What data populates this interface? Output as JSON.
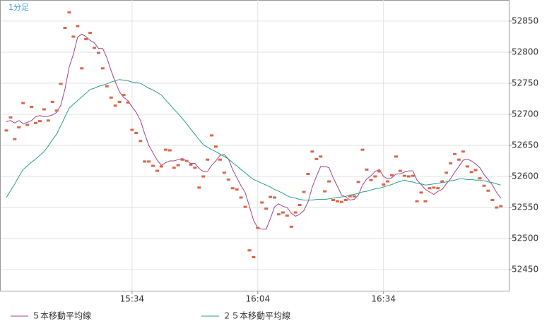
{
  "chart_data": {
    "type": "line",
    "title": "1分足",
    "categories": [
      null,
      null,
      null,
      null,
      null,
      null,
      null,
      null,
      null,
      null,
      null,
      null,
      null,
      null,
      null,
      null,
      null,
      null,
      null,
      null,
      null,
      null,
      null,
      null,
      null,
      null,
      null,
      null,
      null,
      null,
      "15:34",
      null,
      null,
      null,
      null,
      null,
      null,
      null,
      null,
      null,
      null,
      null,
      null,
      null,
      null,
      null,
      null,
      null,
      null,
      null,
      null,
      null,
      null,
      null,
      null,
      null,
      null,
      null,
      null,
      null,
      "16:04",
      null,
      null,
      null,
      null,
      null,
      null,
      null,
      null,
      null,
      null,
      null,
      null,
      null,
      null,
      null,
      null,
      null,
      null,
      null,
      null,
      null,
      null,
      null,
      null,
      null,
      null,
      null,
      null,
      null,
      "16:34",
      null,
      null,
      null,
      null,
      null,
      null,
      null,
      null,
      null,
      null,
      null,
      null,
      null,
      null,
      null,
      null,
      null,
      null,
      null,
      null,
      null,
      null,
      null,
      null,
      null,
      null,
      null,
      null
    ],
    "points": {
      "color": "#d9654a",
      "values": [
        52674,
        52695,
        52660,
        52679,
        52718,
        52683,
        52712,
        52686,
        52689,
        52708,
        52690,
        52720,
        52706,
        52749,
        52839,
        52864,
        52825,
        52842,
        52774,
        52821,
        52831,
        52807,
        52799,
        52774,
        52745,
        52727,
        52714,
        52720,
        52731,
        52719,
        52675,
        52670,
        52657,
        52624,
        52624,
        52617,
        52609,
        52616,
        52643,
        52642,
        52614,
        52618,
        52627,
        52625,
        52619,
        52614,
        52582,
        52600,
        52627,
        52666,
        52648,
        52627,
        52606,
        52595,
        52581,
        52579,
        52566,
        52551,
        52481,
        52470,
        52517,
        52558,
        52548,
        52567,
        52566,
        52539,
        52542,
        52537,
        52519,
        52542,
        52554,
        52575,
        52604,
        52640,
        52628,
        52632,
        52576,
        52592,
        52562,
        52560,
        52559,
        52562,
        52568,
        52568,
        52591,
        52643,
        52611,
        52594,
        52600,
        52608,
        52587,
        52592,
        52602,
        52632,
        52609,
        52601,
        52600,
        52601,
        52560,
        52574,
        52560,
        52581,
        52582,
        52581,
        52592,
        52606,
        52621,
        52636,
        52627,
        52640,
        52616,
        52607,
        52610,
        52597,
        52585,
        52577,
        52562,
        52550,
        52552
      ]
    },
    "series": [
      {
        "name": "５本移動平均線",
        "color": "#a0448c",
        "values": [
          52688,
          52690,
          52686,
          52690,
          52685,
          52687,
          52690,
          52696,
          52698,
          52696,
          52697,
          52699,
          52703,
          52715,
          52741,
          52776,
          52797,
          52824,
          52829,
          52825,
          52819,
          52815,
          52806,
          52806,
          52791,
          52770,
          52752,
          52736,
          52727,
          52722,
          52712,
          52703,
          52690,
          52669,
          52650,
          52638,
          52626,
          52618,
          52622,
          52625,
          52625,
          52627,
          52629,
          52625,
          52621,
          52621,
          52613,
          52608,
          52608,
          52618,
          52625,
          52634,
          52635,
          52628,
          52611,
          52598,
          52585,
          52574,
          52552,
          52529,
          52517,
          52515,
          52515,
          52532,
          52551,
          52556,
          52552,
          52550,
          52541,
          52536,
          52539,
          52545,
          52559,
          52583,
          52600,
          52616,
          52616,
          52614,
          52598,
          52584,
          52570,
          52567,
          52562,
          52563,
          52570,
          52586,
          52596,
          52601,
          52608,
          52611,
          52600,
          52596,
          52598,
          52604,
          52604,
          52607,
          52609,
          52609,
          52594,
          52587,
          52579,
          52575,
          52571,
          52576,
          52579,
          52588,
          52596,
          52607,
          52616,
          52626,
          52628,
          52625,
          52620,
          52614,
          52603,
          52595,
          52586,
          52574,
          52565
        ]
      },
      {
        "name": "２５本移動平均線",
        "color": "#2a9f86",
        "values": [
          52566,
          52577,
          52588,
          52600,
          52611,
          52617,
          52623,
          52628,
          52634,
          52640,
          52649,
          52659,
          52668,
          52682,
          52696,
          52710,
          52716,
          52722,
          52728,
          52734,
          52740,
          52742,
          52745,
          52747,
          52749,
          52752,
          52754,
          52756,
          52755,
          52754,
          52752,
          52751,
          52750,
          52746,
          52742,
          52739,
          52735,
          52731,
          52723,
          52716,
          52708,
          52701,
          52693,
          52685,
          52676,
          52668,
          52659,
          52651,
          52647,
          52643,
          52640,
          52636,
          52632,
          52628,
          52622,
          52617,
          52611,
          52606,
          52600,
          52595,
          52592,
          52589,
          52586,
          52583,
          52579,
          52576,
          52573,
          52569,
          52566,
          52565,
          52563,
          52562,
          52562,
          52562,
          52563,
          52563,
          52563,
          52564,
          52565,
          52566,
          52567,
          52568,
          52570,
          52571,
          52573,
          52575,
          52576,
          52578,
          52580,
          52581,
          52583,
          52585,
          52587,
          52590,
          52592,
          52594,
          52592,
          52591,
          52589,
          52588,
          52586,
          52587,
          52588,
          52589,
          52590,
          52591,
          52593,
          52594,
          52596,
          52596,
          52595,
          52595,
          52594,
          52594,
          52593,
          52591,
          52590,
          52588,
          52586
        ]
      }
    ],
    "ylim": [
      52416,
      52884
    ],
    "yticks": [
      52450,
      52500,
      52550,
      52600,
      52650,
      52700,
      52750,
      52800,
      52850
    ],
    "grid": true
  }
}
